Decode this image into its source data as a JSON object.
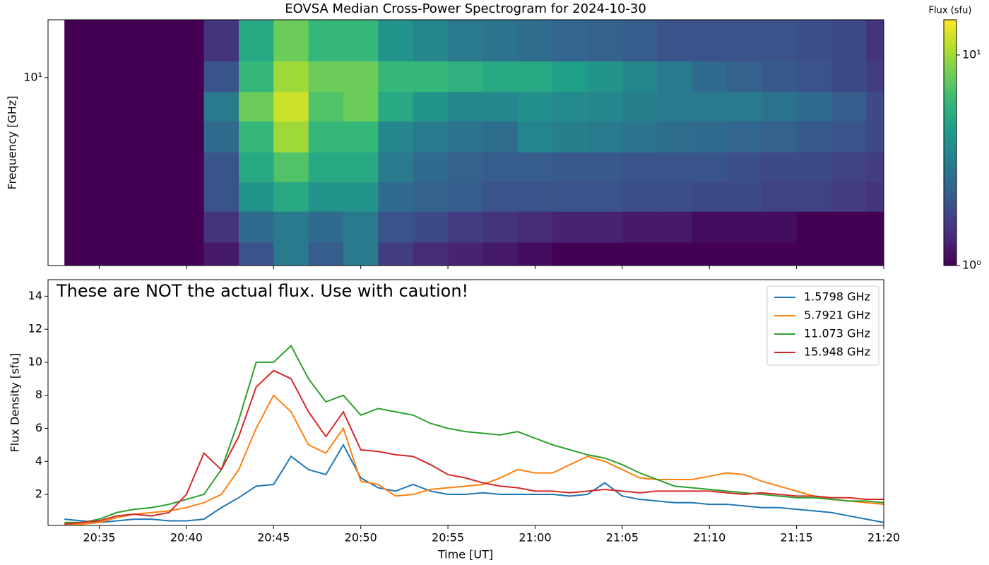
{
  "chart_data": [
    {
      "type": "heatmap",
      "title": "EOVSA Median Cross-Power Spectrogram for 2024-10-30",
      "y_label": "Frequency [GHz]",
      "colorbar_label": "Flux (sfu)",
      "colormap": "viridis",
      "x": [
        1234,
        1236,
        1238,
        1240,
        1242,
        1244,
        1246,
        1248,
        1250,
        1252,
        1254,
        1256,
        1258,
        1260,
        1262,
        1264,
        1266,
        1268,
        1270,
        1272,
        1274,
        1276,
        1278,
        1280
      ],
      "y": [
        1.6,
        2.2,
        3,
        4,
        5.5,
        7.5,
        10,
        14
      ],
      "values": [
        [
          1,
          1,
          1,
          1,
          1.2,
          2,
          3,
          2.2,
          3,
          1.6,
          1.4,
          1.3,
          1.2,
          1.1,
          1,
          1,
          1,
          1,
          1,
          1,
          1,
          1,
          1,
          1
        ],
        [
          1,
          1,
          1,
          1,
          1.5,
          2.5,
          3,
          2.5,
          3,
          2,
          1.8,
          1.6,
          1.5,
          1.4,
          1.3,
          1.3,
          1.2,
          1.2,
          1.1,
          1.1,
          1.1,
          1,
          1,
          1
        ],
        [
          1,
          1,
          1,
          1,
          2,
          4,
          5,
          4,
          4,
          2.5,
          2.3,
          2.2,
          2,
          2,
          2,
          2,
          1.9,
          1.9,
          1.8,
          1.8,
          1.7,
          1.7,
          1.6,
          1.5
        ],
        [
          1,
          1,
          1,
          1,
          2,
          5,
          7,
          5,
          5,
          3,
          2.5,
          2.3,
          2.2,
          2.2,
          2.1,
          2.1,
          2,
          2,
          2,
          1.9,
          1.8,
          1.8,
          1.7,
          1.6
        ],
        [
          1,
          1,
          1,
          1,
          2.5,
          6,
          10,
          6,
          6,
          3.5,
          3,
          2.8,
          2.6,
          3.4,
          3.2,
          3,
          2.8,
          2.6,
          2.5,
          2.4,
          2.3,
          2.1,
          2,
          1.8
        ],
        [
          1,
          1,
          1,
          1,
          3,
          8,
          12,
          7,
          8,
          5,
          4,
          3.5,
          3.5,
          3.8,
          3.6,
          3.5,
          3.2,
          3,
          3,
          3,
          2.8,
          2.5,
          2.2,
          1.8
        ],
        [
          1,
          1,
          1,
          1,
          2,
          6,
          10,
          8,
          8,
          6,
          6,
          5.5,
          5,
          5,
          4.5,
          4,
          3.5,
          3,
          2.5,
          2.3,
          2.1,
          2,
          1.8,
          1.6
        ],
        [
          1,
          1,
          1,
          1,
          1.5,
          5,
          8,
          6,
          6,
          4,
          3.5,
          3,
          2.8,
          2.6,
          2.4,
          2.3,
          2.2,
          2,
          2,
          2,
          2,
          1.9,
          1.8,
          1.5
        ]
      ],
      "xlim": [
        1232.06,
        1280
      ],
      "ylim": [
        1.48,
        18
      ],
      "y_log": true,
      "yticks": [
        {
          "value": 10,
          "label": "10¹"
        }
      ],
      "clim": [
        1,
        14.7
      ],
      "c_log": true,
      "cticks": [
        {
          "value": 1,
          "label": "10⁰"
        },
        {
          "value": 10,
          "label": "10¹"
        }
      ]
    },
    {
      "type": "line",
      "annotation": "These are NOT the actual flux. Use with caution!",
      "x_label": "Time [UT]",
      "y_label": "Flux Density [sfu]",
      "legend": "upper right",
      "x": [
        1233,
        1234,
        1235,
        1236,
        1237,
        1238,
        1239,
        1240,
        1241,
        1242,
        1243,
        1244,
        1245,
        1246,
        1247,
        1248,
        1249,
        1250,
        1251,
        1252,
        1253,
        1254,
        1255,
        1256,
        1257,
        1258,
        1259,
        1260,
        1261,
        1262,
        1263,
        1264,
        1265,
        1266,
        1267,
        1268,
        1269,
        1270,
        1271,
        1272,
        1273,
        1274,
        1275,
        1276,
        1277,
        1278,
        1279,
        1280
      ],
      "series": [
        {
          "name": "1.5798 GHz",
          "color": "#1f77b4",
          "values": [
            0.5,
            0.4,
            0.3,
            0.4,
            0.5,
            0.5,
            0.4,
            0.4,
            0.5,
            1.2,
            1.8,
            2.5,
            2.6,
            4.3,
            3.5,
            3.2,
            5.0,
            3.0,
            2.4,
            2.2,
            2.6,
            2.2,
            2.0,
            2.0,
            2.1,
            2.0,
            2.0,
            2.0,
            2.0,
            1.9,
            2.0,
            2.7,
            1.9,
            1.7,
            1.6,
            1.5,
            1.5,
            1.4,
            1.4,
            1.3,
            1.2,
            1.2,
            1.1,
            1.0,
            0.9,
            0.7,
            0.5,
            0.3
          ]
        },
        {
          "name": "5.7921 GHz",
          "color": "#ff7f0e",
          "values": [
            0.2,
            0.2,
            0.3,
            0.6,
            0.8,
            0.9,
            1.0,
            1.2,
            1.5,
            2.0,
            3.5,
            6.0,
            8.0,
            7.0,
            5.0,
            4.5,
            6.0,
            2.8,
            2.6,
            1.9,
            2.0,
            2.3,
            2.4,
            2.5,
            2.6,
            3.0,
            3.5,
            3.3,
            3.3,
            3.8,
            4.3,
            4.0,
            3.5,
            3.0,
            2.9,
            2.9,
            2.9,
            3.1,
            3.3,
            3.2,
            2.8,
            2.5,
            2.2,
            1.9,
            1.7,
            1.6,
            1.5,
            1.4
          ]
        },
        {
          "name": "11.073 GHz",
          "color": "#2ca02c",
          "values": [
            0.3,
            0.3,
            0.5,
            0.9,
            1.1,
            1.2,
            1.4,
            1.7,
            2.0,
            3.5,
            6.5,
            10.0,
            10.0,
            11.0,
            9.0,
            7.6,
            8.0,
            6.8,
            7.2,
            7.0,
            6.8,
            6.3,
            6.0,
            5.8,
            5.7,
            5.6,
            5.8,
            5.4,
            5.0,
            4.7,
            4.4,
            4.2,
            3.8,
            3.3,
            2.9,
            2.5,
            2.4,
            2.3,
            2.2,
            2.1,
            2.0,
            1.9,
            1.8,
            1.8,
            1.7,
            1.6,
            1.6,
            1.5
          ]
        },
        {
          "name": "15.948 GHz",
          "color": "#d62728",
          "values": [
            0.2,
            0.3,
            0.4,
            0.7,
            0.8,
            0.7,
            0.9,
            2.0,
            4.5,
            3.5,
            5.5,
            8.5,
            9.5,
            9.0,
            7.0,
            5.5,
            7.0,
            4.7,
            4.6,
            4.4,
            4.3,
            3.8,
            3.2,
            3.0,
            2.7,
            2.5,
            2.4,
            2.2,
            2.2,
            2.1,
            2.2,
            2.3,
            2.2,
            2.1,
            2.2,
            2.2,
            2.2,
            2.2,
            2.1,
            2.0,
            2.1,
            2.0,
            1.9,
            1.9,
            1.8,
            1.8,
            1.7,
            1.7
          ]
        }
      ],
      "xlim": [
        1232.06,
        1280
      ],
      "ylim": [
        0.12,
        15
      ],
      "xticks": [
        {
          "value": 1235,
          "label": "20:35"
        },
        {
          "value": 1240,
          "label": "20:40"
        },
        {
          "value": 1245,
          "label": "20:45"
        },
        {
          "value": 1250,
          "label": "20:50"
        },
        {
          "value": 1255,
          "label": "20:55"
        },
        {
          "value": 1260,
          "label": "21:00"
        },
        {
          "value": 1265,
          "label": "21:05"
        },
        {
          "value": 1270,
          "label": "21:10"
        },
        {
          "value": 1275,
          "label": "21:15"
        },
        {
          "value": 1280,
          "label": "21:20"
        }
      ],
      "yticks": [
        2,
        4,
        6,
        8,
        10,
        12,
        14
      ]
    }
  ]
}
